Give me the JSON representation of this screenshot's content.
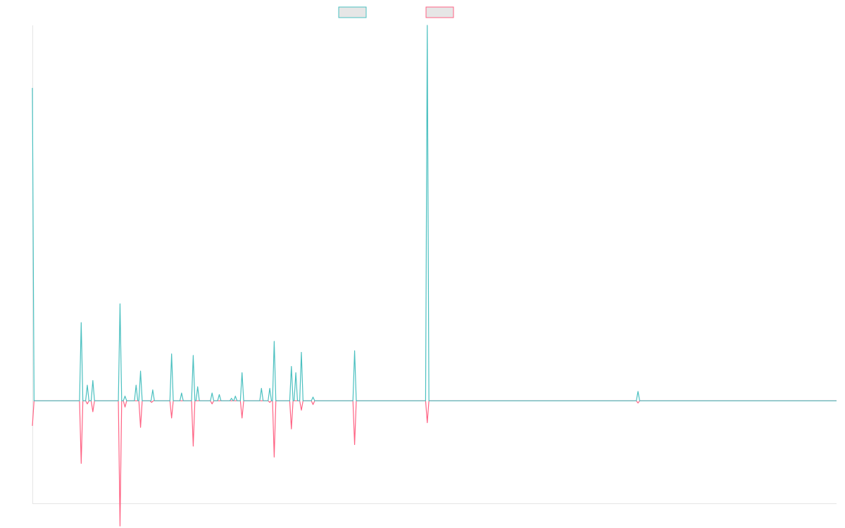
{
  "chart_data": {
    "type": "line",
    "title": "",
    "xlabel": "",
    "ylabel": "",
    "xlim": [
      0,
      145
    ],
    "ylim": [
      -0.33,
      1.2
    ],
    "grid": false,
    "legend": {
      "placement": "top-center",
      "show_text": false
    },
    "colors": {
      "series_a": "#4bc0c0",
      "series_b": "#ff6384",
      "legend_fill": "#e6e6e6",
      "axis": "#e5e5e5"
    },
    "series": [
      {
        "color": "#4bc0c0",
        "points": [
          [
            0,
            1.0
          ],
          [
            0.3,
            0.0
          ],
          [
            8.5,
            0.0
          ],
          [
            8.8,
            0.25
          ],
          [
            9.1,
            0.0
          ],
          [
            9.6,
            0.0
          ],
          [
            9.9,
            0.05
          ],
          [
            10.2,
            0.0
          ],
          [
            10.6,
            0.0
          ],
          [
            10.9,
            0.065
          ],
          [
            11.2,
            0.0
          ],
          [
            15.5,
            0.0
          ],
          [
            15.8,
            0.31
          ],
          [
            16.1,
            0.0
          ],
          [
            16.4,
            0.0
          ],
          [
            16.7,
            0.015
          ],
          [
            17.0,
            0.0
          ],
          [
            18.4,
            0.0
          ],
          [
            18.7,
            0.05
          ],
          [
            19.0,
            0.0
          ],
          [
            19.2,
            0.0
          ],
          [
            19.5,
            0.095
          ],
          [
            19.8,
            0.0
          ],
          [
            21.4,
            0.0
          ],
          [
            21.7,
            0.035
          ],
          [
            22.0,
            0.0
          ],
          [
            24.8,
            0.0
          ],
          [
            25.1,
            0.15
          ],
          [
            25.4,
            0.0
          ],
          [
            26.6,
            0.0
          ],
          [
            26.9,
            0.025
          ],
          [
            27.2,
            0.0
          ],
          [
            28.7,
            0.0
          ],
          [
            29.0,
            0.145
          ],
          [
            29.3,
            0.0
          ],
          [
            29.5,
            0.0
          ],
          [
            29.8,
            0.045
          ],
          [
            30.1,
            0.0
          ],
          [
            32.1,
            0.0
          ],
          [
            32.4,
            0.025
          ],
          [
            32.7,
            0.0
          ],
          [
            33.4,
            0.0
          ],
          [
            33.7,
            0.02
          ],
          [
            34.0,
            0.0
          ],
          [
            35.6,
            0.0
          ],
          [
            35.9,
            0.008
          ],
          [
            36.2,
            0.0
          ],
          [
            36.3,
            0.0
          ],
          [
            36.6,
            0.015
          ],
          [
            36.9,
            0.0
          ],
          [
            37.5,
            0.0
          ],
          [
            37.8,
            0.09
          ],
          [
            38.1,
            0.0
          ],
          [
            41.0,
            0.0
          ],
          [
            41.3,
            0.04
          ],
          [
            41.6,
            0.0
          ],
          [
            42.5,
            0.0
          ],
          [
            42.8,
            0.04
          ],
          [
            43.1,
            0.0
          ],
          [
            43.3,
            0.0
          ],
          [
            43.6,
            0.19
          ],
          [
            43.9,
            0.0
          ],
          [
            46.4,
            0.0
          ],
          [
            46.7,
            0.11
          ],
          [
            47.0,
            0.0
          ],
          [
            47.2,
            0.0
          ],
          [
            47.5,
            0.09
          ],
          [
            47.8,
            0.0
          ],
          [
            48.2,
            0.0
          ],
          [
            48.5,
            0.155
          ],
          [
            48.8,
            0.0
          ],
          [
            50.3,
            0.0
          ],
          [
            50.6,
            0.012
          ],
          [
            50.9,
            0.0
          ],
          [
            57.8,
            0.0
          ],
          [
            58.1,
            0.16
          ],
          [
            58.4,
            0.0
          ],
          [
            70.9,
            0.0
          ],
          [
            71.2,
            1.2
          ],
          [
            71.5,
            0.0
          ],
          [
            108.9,
            0.0
          ],
          [
            109.2,
            0.03
          ],
          [
            109.5,
            0.0
          ],
          [
            145,
            0.0
          ]
        ]
      },
      {
        "color": "#ff6384",
        "points": [
          [
            0,
            -0.08
          ],
          [
            0.3,
            0.0
          ],
          [
            8.5,
            0.0
          ],
          [
            8.8,
            -0.2
          ],
          [
            9.1,
            0.0
          ],
          [
            9.6,
            0.0
          ],
          [
            9.9,
            -0.01
          ],
          [
            10.2,
            0.0
          ],
          [
            10.6,
            0.0
          ],
          [
            10.9,
            -0.035
          ],
          [
            11.2,
            0.0
          ],
          [
            15.5,
            0.0
          ],
          [
            15.8,
            -0.4
          ],
          [
            16.1,
            0.0
          ],
          [
            16.4,
            0.0
          ],
          [
            16.7,
            -0.02
          ],
          [
            17.0,
            0.0
          ],
          [
            19.2,
            0.0
          ],
          [
            19.5,
            -0.085
          ],
          [
            19.8,
            0.0
          ],
          [
            21.2,
            0.0
          ],
          [
            21.5,
            -0.005
          ],
          [
            21.8,
            0.0
          ],
          [
            24.8,
            0.0
          ],
          [
            25.1,
            -0.055
          ],
          [
            25.4,
            0.0
          ],
          [
            28.7,
            0.0
          ],
          [
            29.0,
            -0.145
          ],
          [
            29.3,
            0.0
          ],
          [
            32.1,
            0.0
          ],
          [
            32.4,
            -0.01
          ],
          [
            32.7,
            0.0
          ],
          [
            37.5,
            0.0
          ],
          [
            37.8,
            -0.055
          ],
          [
            38.1,
            0.0
          ],
          [
            42.5,
            0.0
          ],
          [
            42.8,
            -0.005
          ],
          [
            43.1,
            0.0
          ],
          [
            43.3,
            0.0
          ],
          [
            43.6,
            -0.18
          ],
          [
            43.9,
            0.0
          ],
          [
            46.4,
            0.0
          ],
          [
            46.7,
            -0.09
          ],
          [
            47.0,
            0.0
          ],
          [
            48.2,
            0.0
          ],
          [
            48.5,
            -0.03
          ],
          [
            48.8,
            0.0
          ],
          [
            50.3,
            0.0
          ],
          [
            50.6,
            -0.012
          ],
          [
            50.9,
            0.0
          ],
          [
            57.8,
            0.0
          ],
          [
            58.1,
            -0.14
          ],
          [
            58.4,
            0.0
          ],
          [
            70.9,
            0.0
          ],
          [
            71.2,
            -0.07
          ],
          [
            71.5,
            0.0
          ],
          [
            108.9,
            0.0
          ],
          [
            109.2,
            -0.007
          ],
          [
            109.5,
            0.0
          ],
          [
            145,
            0.0
          ]
        ]
      }
    ]
  }
}
